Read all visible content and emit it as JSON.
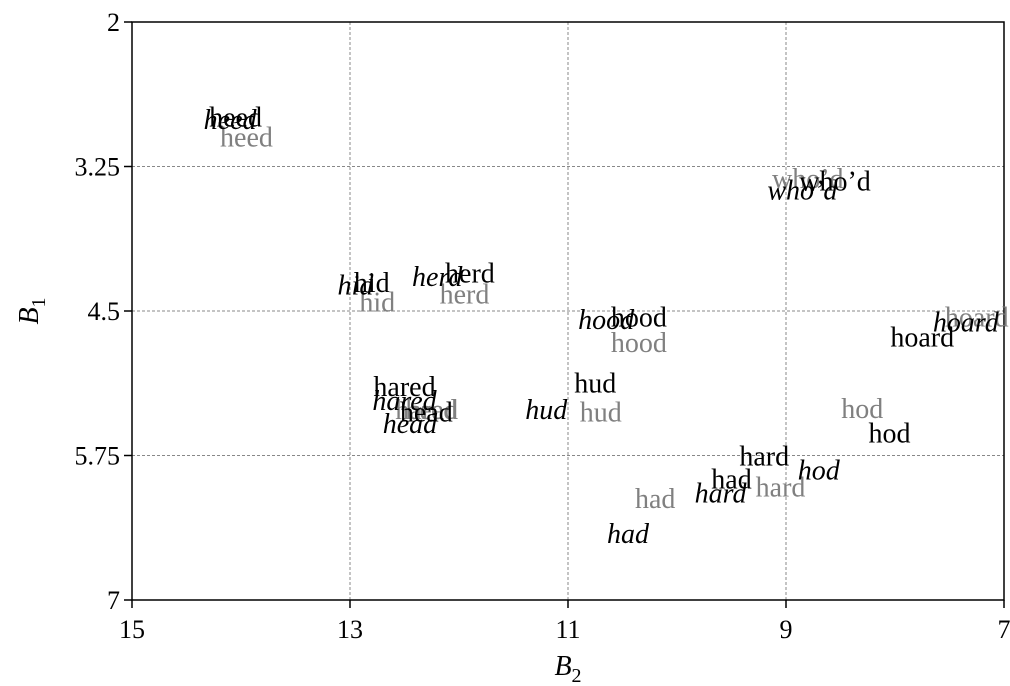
{
  "chart_data": {
    "type": "scatter",
    "title": "",
    "xlabel": "B",
    "xlabel_sub": "2",
    "ylabel": "B",
    "ylabel_sub": "1",
    "x_reversed": true,
    "y_reversed": true,
    "xlim": [
      15,
      7
    ],
    "ylim": [
      7,
      2
    ],
    "xticks": [
      15,
      13,
      11,
      9,
      7
    ],
    "xtick_labels": [
      "15",
      "13",
      "11",
      "9",
      "7"
    ],
    "yticks": [
      2,
      3.25,
      4.5,
      5.75,
      7
    ],
    "ytick_labels": [
      "2",
      "3.25",
      "4.5",
      "5.75",
      "7"
    ],
    "grid": true,
    "colors": {
      "black": "#000000",
      "gray": "#808080",
      "grid": "#888888"
    },
    "points": [
      {
        "label": "heed",
        "x": 14.05,
        "y": 2.85,
        "style": "black"
      },
      {
        "label": "heed",
        "x": 14.1,
        "y": 2.87,
        "style": "italic"
      },
      {
        "label": "heed",
        "x": 13.95,
        "y": 3.02,
        "style": "gray"
      },
      {
        "label": "who’d",
        "x": 8.8,
        "y": 3.38,
        "style": "gray"
      },
      {
        "label": "who’d",
        "x": 8.55,
        "y": 3.4,
        "style": "black"
      },
      {
        "label": "who’d",
        "x": 8.85,
        "y": 3.48,
        "style": "italic"
      },
      {
        "label": "hid",
        "x": 12.8,
        "y": 4.28,
        "style": "black"
      },
      {
        "label": "hid",
        "x": 12.95,
        "y": 4.3,
        "style": "italic"
      },
      {
        "label": "hid",
        "x": 12.75,
        "y": 4.45,
        "style": "gray"
      },
      {
        "label": "herd",
        "x": 11.9,
        "y": 4.2,
        "style": "black"
      },
      {
        "label": "herd",
        "x": 12.2,
        "y": 4.23,
        "style": "italic"
      },
      {
        "label": "herd",
        "x": 11.95,
        "y": 4.38,
        "style": "gray"
      },
      {
        "label": "hood",
        "x": 10.35,
        "y": 4.58,
        "style": "black"
      },
      {
        "label": "hood",
        "x": 10.65,
        "y": 4.6,
        "style": "italic"
      },
      {
        "label": "hood",
        "x": 10.35,
        "y": 4.8,
        "style": "gray"
      },
      {
        "label": "hoard",
        "x": 7.25,
        "y": 4.58,
        "style": "gray"
      },
      {
        "label": "hoard",
        "x": 7.35,
        "y": 4.62,
        "style": "italic"
      },
      {
        "label": "hoard",
        "x": 7.75,
        "y": 4.75,
        "style": "black"
      },
      {
        "label": "hared",
        "x": 12.5,
        "y": 5.18,
        "style": "black"
      },
      {
        "label": "hared",
        "x": 12.5,
        "y": 5.3,
        "style": "italic"
      },
      {
        "label": "hared",
        "x": 12.3,
        "y": 5.38,
        "style": "gray"
      },
      {
        "label": "head",
        "x": 12.3,
        "y": 5.4,
        "style": "black"
      },
      {
        "label": "head",
        "x": 12.25,
        "y": 5.38,
        "style": "gray"
      },
      {
        "label": "head",
        "x": 12.45,
        "y": 5.5,
        "style": "italic"
      },
      {
        "label": "hud",
        "x": 10.75,
        "y": 5.15,
        "style": "black"
      },
      {
        "label": "hud",
        "x": 11.2,
        "y": 5.38,
        "style": "italic"
      },
      {
        "label": "hud",
        "x": 10.7,
        "y": 5.4,
        "style": "gray"
      },
      {
        "label": "hod",
        "x": 8.3,
        "y": 5.37,
        "style": "gray"
      },
      {
        "label": "hod",
        "x": 8.05,
        "y": 5.58,
        "style": "black"
      },
      {
        "label": "hard",
        "x": 9.2,
        "y": 5.78,
        "style": "black"
      },
      {
        "label": "hod",
        "x": 8.7,
        "y": 5.9,
        "style": "italic"
      },
      {
        "label": "hard",
        "x": 9.05,
        "y": 6.05,
        "style": "gray"
      },
      {
        "label": "had",
        "x": 9.5,
        "y": 5.98,
        "style": "black"
      },
      {
        "label": "hard",
        "x": 9.6,
        "y": 6.1,
        "style": "italic"
      },
      {
        "label": "had",
        "x": 10.2,
        "y": 6.15,
        "style": "gray"
      },
      {
        "label": "had",
        "x": 10.45,
        "y": 6.45,
        "style": "italic"
      }
    ]
  }
}
